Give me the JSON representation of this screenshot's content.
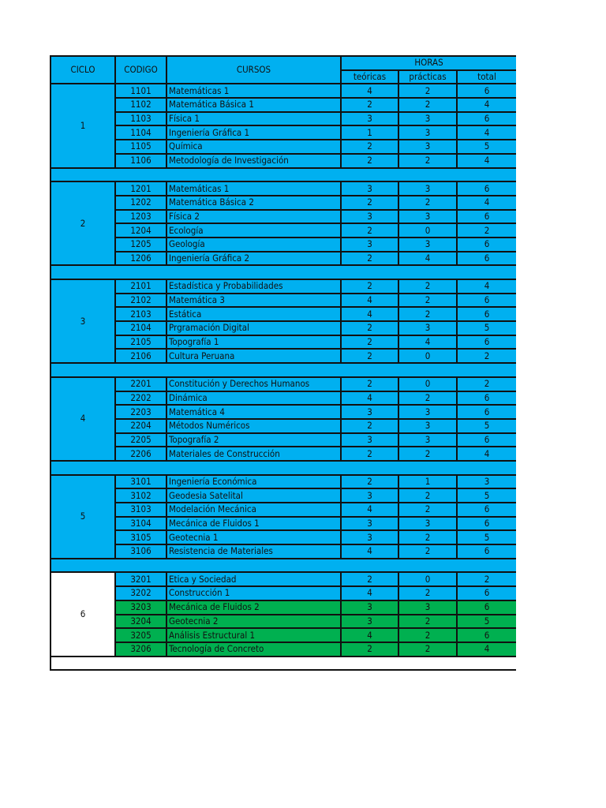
{
  "colors": {
    "blue": "#00B0F0",
    "green": "#00B050"
  },
  "header": {
    "ciclo": "CICLO",
    "codigo": "CODIGO",
    "cursos": "CURSOS",
    "horas": "HORAS",
    "teoricas": "teóricas",
    "practicas": "prácticas",
    "total": "total"
  },
  "ciclos": [
    {
      "ciclo": "1",
      "bg": "blue",
      "rows": [
        {
          "codigo": "1101",
          "curso": "Matemáticas 1",
          "t": "4",
          "p": "2",
          "total": "6"
        },
        {
          "codigo": "1102",
          "curso": "Matemática Básica 1",
          "t": "2",
          "p": "2",
          "total": "4"
        },
        {
          "codigo": "1103",
          "curso": "Física 1",
          "t": "3",
          "p": "3",
          "total": "6"
        },
        {
          "codigo": "1104",
          "curso": "Ingeniería Gráfica 1",
          "t": "1",
          "p": "3",
          "total": "4"
        },
        {
          "codigo": "1105",
          "curso": "Química",
          "t": "2",
          "p": "3",
          "total": "5"
        },
        {
          "codigo": "1106",
          "curso": "Metodología de Investigación",
          "t": "2",
          "p": "2",
          "total": "4"
        }
      ]
    },
    {
      "ciclo": "2",
      "bg": "blue",
      "rows": [
        {
          "codigo": "1201",
          "curso": "Matemáticas 1",
          "t": "3",
          "p": "3",
          "total": "6"
        },
        {
          "codigo": "1202",
          "curso": "Matemática Básica 2",
          "t": "2",
          "p": "2",
          "total": "4"
        },
        {
          "codigo": "1203",
          "curso": "Física 2",
          "t": "3",
          "p": "3",
          "total": "6"
        },
        {
          "codigo": "1204",
          "curso": "Ecología",
          "t": "2",
          "p": "0",
          "total": "2"
        },
        {
          "codigo": "1205",
          "curso": "Geología",
          "t": "3",
          "p": "3",
          "total": "6"
        },
        {
          "codigo": "1206",
          "curso": "Ingeniería Gráfica 2",
          "t": "2",
          "p": "4",
          "total": "6"
        }
      ]
    },
    {
      "ciclo": "3",
      "bg": "blue",
      "rows": [
        {
          "codigo": "2101",
          "curso": "Estadística y Probabilidades",
          "t": "2",
          "p": "2",
          "total": "4"
        },
        {
          "codigo": "2102",
          "curso": "Matemática 3",
          "t": "4",
          "p": "2",
          "total": "6"
        },
        {
          "codigo": "2103",
          "curso": "Estática",
          "t": "4",
          "p": "2",
          "total": "6"
        },
        {
          "codigo": "2104",
          "curso": "Prgramación Digital",
          "t": "2",
          "p": "3",
          "total": "5"
        },
        {
          "codigo": "2105",
          "curso": "Topografía 1",
          "t": "2",
          "p": "4",
          "total": "6"
        },
        {
          "codigo": "2106",
          "curso": "Cultura Peruana",
          "t": "2",
          "p": "0",
          "total": "2"
        }
      ]
    },
    {
      "ciclo": "4",
      "bg": "blue",
      "rows": [
        {
          "codigo": "2201",
          "curso": "Constitución y Derechos Humanos",
          "t": "2",
          "p": "0",
          "total": "2"
        },
        {
          "codigo": "2202",
          "curso": "Dinámica",
          "t": "4",
          "p": "2",
          "total": "6"
        },
        {
          "codigo": "2203",
          "curso": "Matemática 4",
          "t": "3",
          "p": "3",
          "total": "6"
        },
        {
          "codigo": "2204",
          "curso": "Métodos Numéricos",
          "t": "2",
          "p": "3",
          "total": "5"
        },
        {
          "codigo": "2205",
          "curso": "Topografía 2",
          "t": "3",
          "p": "3",
          "total": "6"
        },
        {
          "codigo": "2206",
          "curso": "Materiales de Construcción",
          "t": "2",
          "p": "2",
          "total": "4"
        }
      ]
    },
    {
      "ciclo": "5",
      "bg": "blue",
      "rows": [
        {
          "codigo": "3101",
          "curso": "Ingeniería Económica",
          "t": "2",
          "p": "1",
          "total": "3"
        },
        {
          "codigo": "3102",
          "curso": "Geodesia Satelital",
          "t": "3",
          "p": "2",
          "total": "5"
        },
        {
          "codigo": "3103",
          "curso": "Modelación Mecánica",
          "t": "4",
          "p": "2",
          "total": "6"
        },
        {
          "codigo": "3104",
          "curso": "Mecánica de Fluidos 1",
          "t": "3",
          "p": "3",
          "total": "6"
        },
        {
          "codigo": "3105",
          "curso": "Geotecnia 1",
          "t": "3",
          "p": "2",
          "total": "5"
        },
        {
          "codigo": "3106",
          "curso": "Resistencia de Materiales",
          "t": "4",
          "p": "2",
          "total": "6"
        }
      ]
    },
    {
      "ciclo": "6",
      "bg": "white",
      "rows": [
        {
          "codigo": "3201",
          "curso": "Etica y Sociedad",
          "t": "2",
          "p": "0",
          "total": "2",
          "bg": "blue"
        },
        {
          "codigo": "3202",
          "curso": "Construcción 1",
          "t": "4",
          "p": "2",
          "total": "6",
          "bg": "blue"
        },
        {
          "codigo": "3203",
          "curso": "Mecánica de Fluidos 2",
          "t": "3",
          "p": "3",
          "total": "6",
          "bg": "green"
        },
        {
          "codigo": "3204",
          "curso": "Geotecnia 2",
          "t": "3",
          "p": "2",
          "total": "5",
          "bg": "green"
        },
        {
          "codigo": "3205",
          "curso": "Análisis Estructural 1",
          "t": "4",
          "p": "2",
          "total": "6",
          "bg": "green"
        },
        {
          "codigo": "3206",
          "curso": "Tecnología de Concreto",
          "t": "2",
          "p": "2",
          "total": "4",
          "bg": "green"
        }
      ]
    }
  ]
}
